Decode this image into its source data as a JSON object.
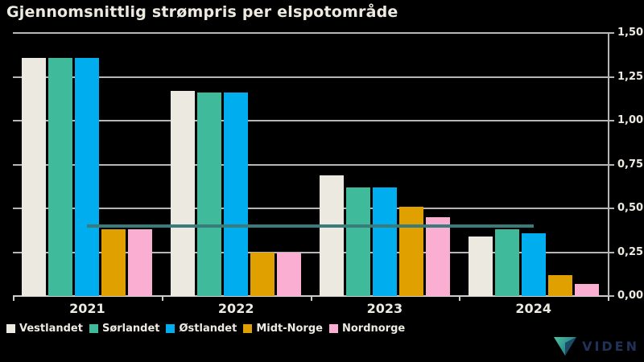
{
  "title": "Gjennomsnittlig strømpris per elspotområde",
  "colors": {
    "background": "#000000",
    "text": "#EDEBE1",
    "gridline": "#B7B5B5",
    "axis_line": "#CFCDC5",
    "reference_line": "#3A7B7C",
    "logo_text": "#223158",
    "logo_gradient_start": "#4CC8A1",
    "logo_gradient_end": "#1E6E84",
    "logo_fold": "#17405F"
  },
  "chart_data": {
    "type": "bar",
    "title": "Gjennomsnittlig strømpris per elspotområde",
    "categories": [
      "2021",
      "2022",
      "2023",
      "2024"
    ],
    "series": [
      {
        "name": "Vestlandet",
        "color": "#ECEAE0",
        "values": [
          1.36,
          1.17,
          0.69,
          0.34
        ]
      },
      {
        "name": "Sørlandet",
        "color": "#3FBA9B",
        "values": [
          1.36,
          1.16,
          0.62,
          0.38
        ]
      },
      {
        "name": "Østlandet",
        "color": "#00AEEF",
        "values": [
          1.36,
          1.16,
          0.62,
          0.36
        ]
      },
      {
        "name": "Midt-Norge",
        "color": "#E0A000",
        "values": [
          0.38,
          0.25,
          0.51,
          0.12
        ]
      },
      {
        "name": "Nordnorge",
        "color": "#F9AED2",
        "values": [
          0.38,
          0.25,
          0.45,
          0.07
        ]
      }
    ],
    "reference_line": {
      "value": 0.4,
      "color": "#3A7B7C",
      "spans_categories": [
        "2021",
        "2024"
      ]
    },
    "y_axis": {
      "min": 0,
      "max": 1.5,
      "step": 0.25,
      "side": "right",
      "tick_labels": [
        "0,00",
        "0,25",
        "0,50",
        "0,75",
        "1,00",
        "1,25",
        "1,50"
      ]
    },
    "xlabel": "",
    "ylabel": "",
    "ylim": [
      0,
      1.5
    ],
    "grid": true,
    "legend_position": "bottom-left"
  },
  "logo": {
    "text": "VIDEN"
  }
}
